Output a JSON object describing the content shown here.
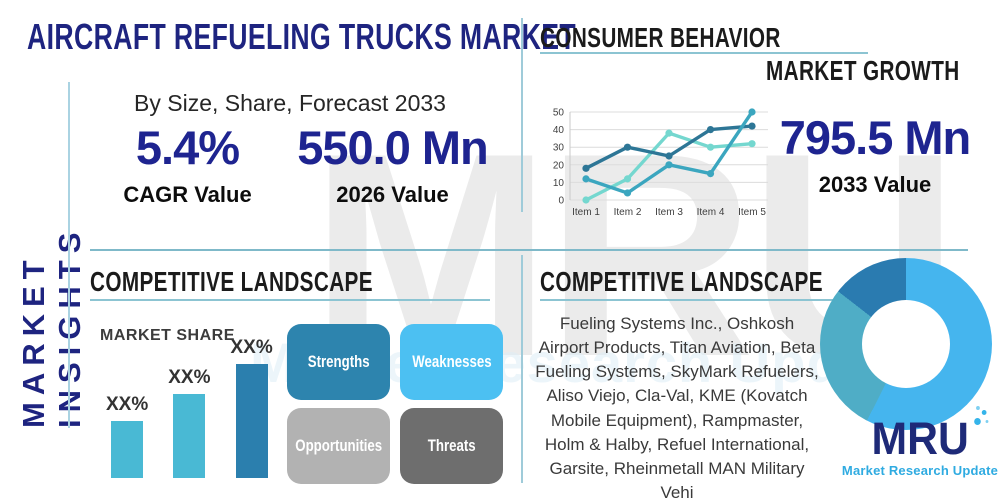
{
  "page": {
    "vertical_label": "MARKET INSIGHTS",
    "main_title": "AIRCRAFT REFUELING TRUCKS MARKET",
    "subtitle": "By Size, Share, Forecast 2033"
  },
  "stats": {
    "cagr": {
      "value": "5.4%",
      "label": "CAGR Value"
    },
    "y2026": {
      "value": "550.0 Mn",
      "label": "2026 Value"
    },
    "y2033": {
      "value": "795.5 Mn",
      "label": "2033 Value"
    }
  },
  "sections": {
    "consumer_behavior": "CONSUMER BEHAVIOR",
    "market_growth": "MARKET GROWTH",
    "competitive_landscape_left": "COMPETITIVE LANDSCAPE",
    "competitive_landscape_right": "COMPETITIVE LANDSCAPE"
  },
  "swot": [
    {
      "label": "Strengths",
      "color": "#2d84ae"
    },
    {
      "label": "Weaknesses",
      "color": "#4cc0f2"
    },
    {
      "label": "Opportunities",
      "color": "#b2b2b2"
    },
    {
      "label": "Threats",
      "color": "#6e6e6e"
    }
  ],
  "companies_text": "Fueling Systems Inc., Oshkosh Airport Products, Titan Aviation, Beta Fueling Systems, SkyMark Refuelers, Aliso Viejo, Cla-Val, KME (Kovatch Mobile Equipment), Rampmaster, Holm & Halby, Refuel International, Garsite, Rheinmetall MAN Military Vehi",
  "logo": {
    "text": "MRU",
    "tagline": "Market Research Update"
  },
  "watermark": {
    "text": "MRU",
    "tagline": "Market Research Update"
  },
  "colors": {
    "navy": "#1e2480",
    "header_black": "#1b1b1b",
    "underline_teal": "#8cc4d2",
    "divider_teal": "#7fb9c9",
    "logo_blue": "#2fabe1"
  },
  "chart_data": [
    {
      "type": "line",
      "title": "MARKET GROWTH (Consumer Behavior trend chart)",
      "categories": [
        "Item 1",
        "Item 2",
        "Item 3",
        "Item 4",
        "Item 5"
      ],
      "series": [
        {
          "name": "dark-blue-series",
          "color": "#2d7696",
          "values": [
            18,
            30,
            25,
            40,
            42
          ]
        },
        {
          "name": "teal-series",
          "color": "#3ba6bf",
          "values": [
            12,
            4,
            20,
            15,
            50
          ]
        },
        {
          "name": "light-aqua-series",
          "color": "#74d7cf",
          "values": [
            0,
            12,
            38,
            30,
            32
          ]
        }
      ],
      "ylim": [
        0,
        50
      ],
      "yticks": [
        0,
        10,
        20,
        30,
        40,
        50
      ],
      "grid": true,
      "legend": false
    },
    {
      "type": "bar",
      "title": "MARKET SHARE",
      "categories": [
        "",
        "",
        ""
      ],
      "values": [
        50,
        74,
        100
      ],
      "labels": [
        "XX%",
        "XX%",
        "XX%"
      ],
      "colors": [
        "#49b9d4",
        "#49b9d4",
        "#2b7fae"
      ],
      "note": "values are relative heights; actual shares masked as XX%"
    },
    {
      "type": "donut",
      "title": "Competitive landscape share donut",
      "segments": [
        {
          "name": "primary-segment",
          "value": 57.5,
          "color": "#45b5ee"
        },
        {
          "name": "secondary-segment",
          "value": 28.0,
          "color": "#4fadc6"
        },
        {
          "name": "tertiary-segment",
          "value": 14.5,
          "color": "#2a7bb0"
        }
      ]
    }
  ]
}
